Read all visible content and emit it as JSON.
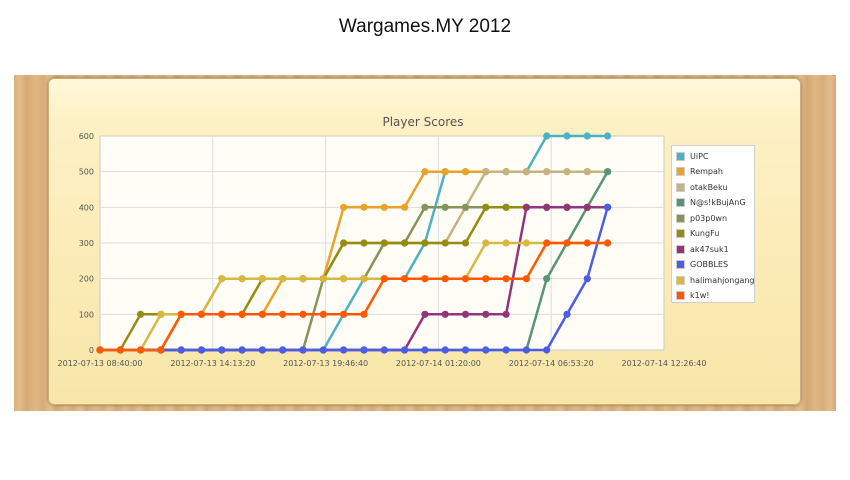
{
  "page": {
    "title": "Wargames.MY 2012"
  },
  "chart_data": {
    "type": "line",
    "title": "Player Scores",
    "xlabel": "",
    "ylabel": "",
    "x_axis_type": "datetime",
    "xlim": [
      "2012-07-13 08:40:00",
      "2012-07-14 12:26:40"
    ],
    "ylim": [
      0,
      600
    ],
    "x_ticks": [
      "2012-07-13 08:40:00",
      "2012-07-13 14:13:20",
      "2012-07-13 19:46:40",
      "2012-07-14 01:20:00",
      "2012-07-14 06:53:20",
      "2012-07-14 12:26:40"
    ],
    "y_ticks": [
      0,
      100,
      200,
      300,
      400,
      500,
      600
    ],
    "grid": true,
    "legend_position": "right",
    "sample_times": [
      "2012-07-13 08:40",
      "2012-07-13 09:40",
      "2012-07-13 10:40",
      "2012-07-13 11:40",
      "2012-07-13 12:40",
      "2012-07-13 13:40",
      "2012-07-13 14:40",
      "2012-07-13 15:40",
      "2012-07-13 16:40",
      "2012-07-13 17:40",
      "2012-07-13 18:40",
      "2012-07-13 19:40",
      "2012-07-13 20:40",
      "2012-07-13 21:40",
      "2012-07-13 22:40",
      "2012-07-13 23:40",
      "2012-07-14 00:40",
      "2012-07-14 01:40",
      "2012-07-14 02:40",
      "2012-07-14 03:40",
      "2012-07-14 04:40",
      "2012-07-14 05:40",
      "2012-07-14 06:40",
      "2012-07-14 07:40",
      "2012-07-14 08:40",
      "2012-07-14 09:40"
    ],
    "series": [
      {
        "name": "UiPC",
        "color": "#4bb2c5",
        "values": [
          0,
          0,
          0,
          0,
          0,
          0,
          0,
          0,
          0,
          0,
          0,
          0,
          100,
          200,
          200,
          200,
          300,
          500,
          500,
          500,
          500,
          500,
          600,
          600,
          600,
          600
        ]
      },
      {
        "name": "Rempah",
        "color": "#eaa228",
        "values": [
          0,
          0,
          0,
          0,
          100,
          100,
          100,
          100,
          100,
          200,
          200,
          200,
          400,
          400,
          400,
          400,
          500,
          500,
          500,
          500,
          500,
          500,
          500,
          500,
          500,
          500
        ]
      },
      {
        "name": "otakBeku",
        "color": "#c5b47f",
        "values": [
          0,
          0,
          0,
          0,
          100,
          100,
          200,
          200,
          200,
          200,
          200,
          200,
          300,
          300,
          300,
          300,
          300,
          300,
          400,
          500,
          500,
          500,
          500,
          500,
          500,
          500
        ]
      },
      {
        "name": "N@s!kBujAnG",
        "color": "#579575",
        "values": [
          0,
          0,
          0,
          0,
          0,
          0,
          0,
          0,
          0,
          0,
          0,
          0,
          0,
          0,
          0,
          0,
          0,
          0,
          0,
          0,
          0,
          0,
          200,
          300,
          400,
          500
        ]
      },
      {
        "name": "p03p0wn",
        "color": "#839557",
        "values": [
          0,
          0,
          0,
          0,
          0,
          0,
          0,
          0,
          0,
          0,
          0,
          200,
          200,
          200,
          300,
          300,
          400,
          400,
          400,
          400,
          400,
          400,
          400,
          400,
          400,
          400
        ]
      },
      {
        "name": "KungFu",
        "color": "#958c12",
        "values": [
          0,
          0,
          100,
          100,
          100,
          100,
          100,
          100,
          200,
          200,
          200,
          200,
          300,
          300,
          300,
          300,
          300,
          300,
          300,
          400,
          400,
          400,
          400,
          400,
          400,
          400
        ]
      },
      {
        "name": "ak47suk1",
        "color": "#953579",
        "values": [
          0,
          0,
          0,
          0,
          0,
          0,
          0,
          0,
          0,
          0,
          0,
          0,
          0,
          0,
          0,
          0,
          100,
          100,
          100,
          100,
          100,
          400,
          400,
          400,
          400,
          400
        ]
      },
      {
        "name": "GOBBLES",
        "color": "#4b5de4",
        "values": [
          0,
          0,
          0,
          0,
          0,
          0,
          0,
          0,
          0,
          0,
          0,
          0,
          0,
          0,
          0,
          0,
          0,
          0,
          0,
          0,
          0,
          0,
          0,
          100,
          200,
          400
        ]
      },
      {
        "name": "halimahjongang",
        "color": "#d8b83f",
        "values": [
          0,
          0,
          0,
          100,
          100,
          100,
          200,
          200,
          200,
          200,
          200,
          200,
          200,
          200,
          200,
          200,
          200,
          200,
          200,
          300,
          300,
          300,
          300,
          300,
          300,
          300
        ]
      },
      {
        "name": "k1w!",
        "color": "#ff5800",
        "values": [
          0,
          0,
          0,
          0,
          100,
          100,
          100,
          100,
          100,
          100,
          100,
          100,
          100,
          100,
          200,
          200,
          200,
          200,
          200,
          200,
          200,
          200,
          300,
          300,
          300,
          300
        ]
      }
    ]
  }
}
